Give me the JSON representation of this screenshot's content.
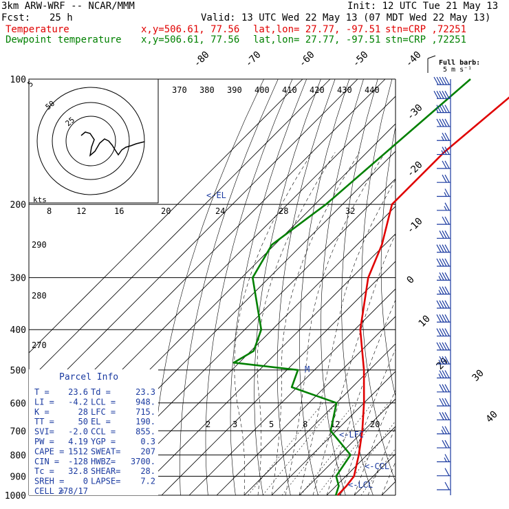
{
  "header": {
    "model": "3km ARW-WRF -- NCAR/MMM",
    "init": "Init: 12 UTC Tue 21 May 13",
    "fcst_label": "Fcst:",
    "fcst_hours": "25 h",
    "valid": "Valid: 13 UTC Wed 22 May 13 (07 MDT Wed 22 May 13)",
    "temp_label": "Temperature",
    "dewp_label": "Dewpoint temperature",
    "xy": "x,y=506.61, 77.56",
    "latlon": "lat,lon= 27.77, -97.51",
    "stn": "stn=CRP ,72251"
  },
  "colors": {
    "temperature": "#e00000",
    "dewpoint": "#008000",
    "wind": "#1a3aa0",
    "labels": "#1a3aa0"
  },
  "barb_legend": {
    "line1": "Full barb:",
    "line2": "5 m s⁻¹"
  },
  "parcel_info": {
    "title": "Parcel Info",
    "rows": [
      [
        "T  =",
        "23.6",
        "Td =",
        "23.3"
      ],
      [
        "LI =",
        "-4.2",
        "LCL =",
        "948."
      ],
      [
        "K  =",
        "28",
        "LFC =",
        "715."
      ],
      [
        "TT =",
        "50",
        "EL =",
        "190."
      ],
      [
        "SVI=",
        "-2.0",
        "CCL =",
        "855."
      ],
      [
        "PW =",
        "4.19",
        "YGP =",
        "0.3"
      ],
      [
        "CAPE =",
        "1512",
        "SWEAT=",
        "207"
      ],
      [
        "CIN =",
        "-128",
        "HWBZ=",
        "3700."
      ],
      [
        "Tc =",
        "32.8",
        "SHEAR=",
        "28."
      ],
      [
        "SREH =",
        "0",
        "LAPSE=",
        "7.2"
      ],
      [
        "CELL =",
        "278/17",
        "",
        ""
      ]
    ]
  },
  "level_labels": {
    "el": "<-EL",
    "lfc": "<-LFC",
    "ccl": "<-CCL",
    "lcl": "<-LCL",
    "m": "M"
  },
  "hodograph": {
    "unit": "kts",
    "rings": [
      "5",
      "50",
      "25"
    ]
  },
  "chart_data": {
    "type": "line",
    "title": "",
    "y_label": "",
    "pressure_levels": [
      100,
      200,
      300,
      400,
      500,
      600,
      700,
      800,
      900,
      1000
    ],
    "isotherm_labels": [
      "-80",
      "-70",
      "-60",
      "-50",
      "-40",
      "-30",
      "-20",
      "-10",
      "0",
      "10",
      "20",
      "30",
      "40"
    ],
    "theta_e_labels": [
      "370",
      "380",
      "390",
      "400",
      "410",
      "420",
      "430",
      "440"
    ],
    "mixing_ratio_upper": [
      "8",
      "12",
      "16",
      "20",
      "24",
      "28",
      "32"
    ],
    "mixing_ratio_lower": [
      "2",
      "3",
      "5",
      "8",
      "12",
      "20"
    ],
    "theta_labels": [
      "290",
      "280",
      "270"
    ],
    "series": [
      {
        "name": "Temperature",
        "color": "#e00000",
        "points": [
          [
            100,
            -57
          ],
          [
            150,
            -62
          ],
          [
            200,
            -62
          ],
          [
            250,
            -51
          ],
          [
            300,
            -44
          ],
          [
            400,
            -28
          ],
          [
            500,
            -12
          ],
          [
            600,
            0
          ],
          [
            700,
            9.5
          ],
          [
            800,
            17
          ],
          [
            900,
            23
          ],
          [
            950,
            23.8
          ],
          [
            1000,
            24
          ]
        ]
      },
      {
        "name": "Dewpoint temperature",
        "color": "#008000",
        "points": [
          [
            100,
            -79
          ],
          [
            200,
            -86
          ],
          [
            250,
            -91
          ],
          [
            300,
            -86
          ],
          [
            400,
            -64
          ],
          [
            450,
            -59
          ],
          [
            480,
            -62
          ],
          [
            500,
            -36
          ],
          [
            550,
            -32
          ],
          [
            600,
            -10
          ],
          [
            700,
            -2
          ],
          [
            800,
            14
          ],
          [
            900,
            16.5
          ],
          [
            950,
            21
          ],
          [
            1000,
            23.3
          ]
        ]
      }
    ],
    "wind_barb_speeds_kt": [
      50,
      50,
      45,
      40,
      25,
      25,
      20,
      20,
      15,
      15,
      20,
      30,
      40,
      40,
      35,
      35,
      40,
      40,
      40,
      40,
      35,
      35,
      30,
      30,
      30,
      25,
      20,
      15,
      10,
      10
    ]
  }
}
